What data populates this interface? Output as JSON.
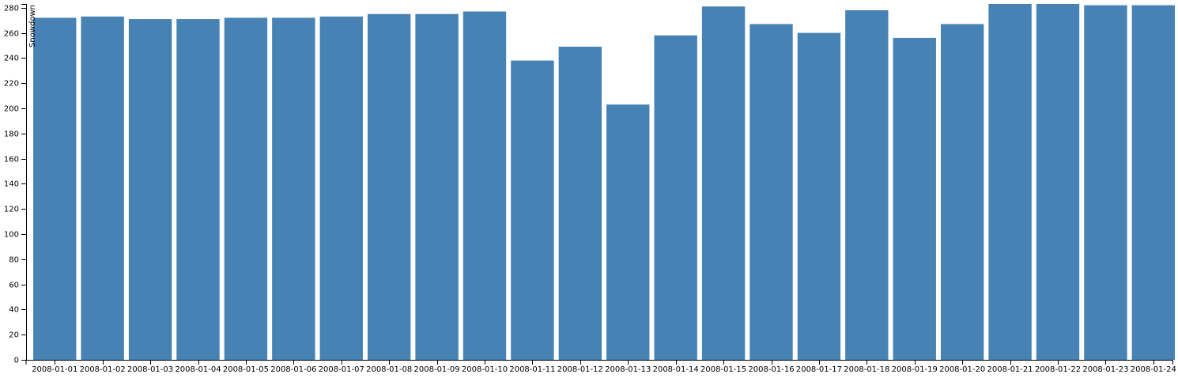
{
  "chart_data": {
    "type": "bar",
    "title": "",
    "xlabel": "",
    "ylabel": "Snowdown",
    "categories": [
      "2008-01-01",
      "2008-01-02",
      "2008-01-03",
      "2008-01-04",
      "2008-01-05",
      "2008-01-06",
      "2008-01-07",
      "2008-01-08",
      "2008-01-09",
      "2008-01-10",
      "2008-01-11",
      "2008-01-12",
      "2008-01-13",
      "2008-01-14",
      "2008-01-15",
      "2008-01-16",
      "2008-01-17",
      "2008-01-18",
      "2008-01-19",
      "2008-01-20",
      "2008-01-21",
      "2008-01-22",
      "2008-01-23",
      "2008-01-24"
    ],
    "values": [
      272,
      273,
      271,
      271,
      272,
      272,
      273,
      275,
      275,
      277,
      238,
      249,
      203,
      258,
      281,
      267,
      260,
      278,
      256,
      267,
      283,
      283,
      282,
      282
    ],
    "ylim": [
      0,
      283
    ],
    "yticks": [
      0,
      20,
      40,
      60,
      80,
      100,
      120,
      140,
      160,
      180,
      200,
      220,
      240,
      260,
      280
    ],
    "grid": false,
    "bar_color": "#4682b4",
    "axis_color": "#000000"
  }
}
